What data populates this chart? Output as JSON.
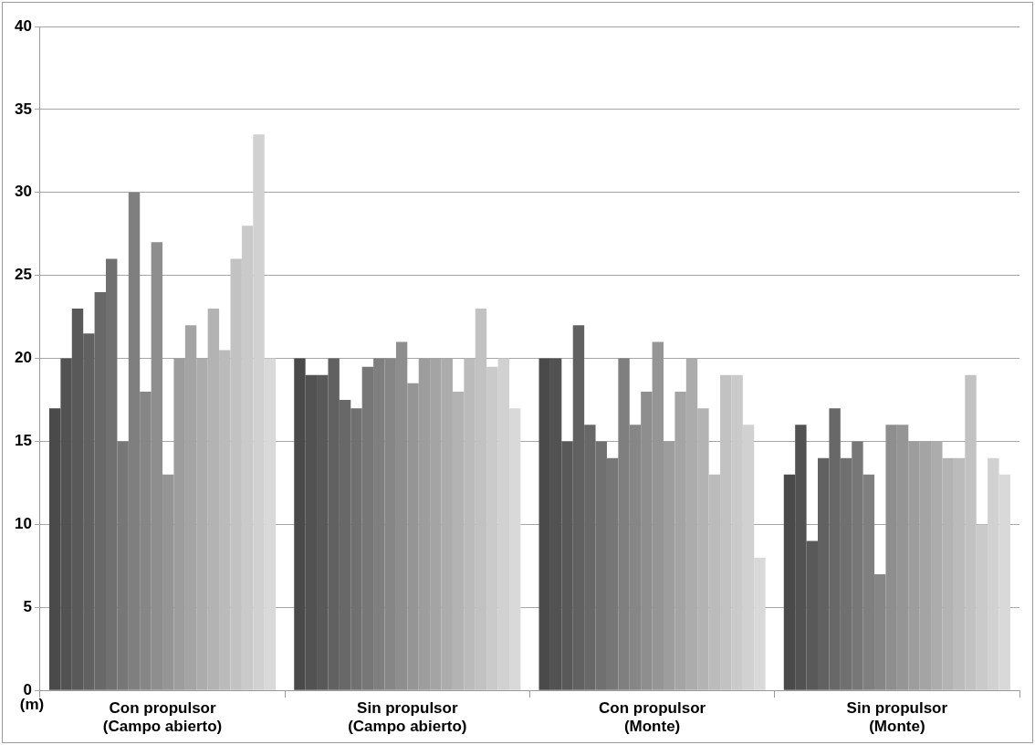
{
  "chart_data": {
    "type": "bar",
    "ylabel": "(m)",
    "categories": [
      "Con propulsor\n(Campo abierto)",
      "Sin propulsor\n(Campo abierto)",
      "Con propulsor\n(Monte)",
      "Sin propulsor\n(Monte)"
    ],
    "series": [
      {
        "color": "#4a4a4a",
        "values": [
          17,
          20,
          20,
          13
        ]
      },
      {
        "color": "#525252",
        "values": [
          20,
          19,
          20,
          16
        ]
      },
      {
        "color": "#595959",
        "values": [
          23,
          19,
          15,
          9
        ]
      },
      {
        "color": "#616161",
        "values": [
          21.5,
          20,
          22,
          14
        ]
      },
      {
        "color": "#686868",
        "values": [
          24,
          17.5,
          16,
          17
        ]
      },
      {
        "color": "#707070",
        "values": [
          26,
          17,
          15,
          14
        ]
      },
      {
        "color": "#777777",
        "values": [
          15,
          19.5,
          14,
          15
        ]
      },
      {
        "color": "#7f7f7f",
        "values": [
          30,
          20,
          20,
          13
        ]
      },
      {
        "color": "#868686",
        "values": [
          18,
          20,
          16,
          7
        ]
      },
      {
        "color": "#8e8e8e",
        "values": [
          27,
          21,
          18,
          16
        ]
      },
      {
        "color": "#959595",
        "values": [
          13,
          18.5,
          21,
          16
        ]
      },
      {
        "color": "#9d9d9d",
        "values": [
          20,
          20,
          15,
          15
        ]
      },
      {
        "color": "#a4a4a4",
        "values": [
          22,
          20,
          18,
          15
        ]
      },
      {
        "color": "#acacac",
        "values": [
          20,
          20,
          20,
          15
        ]
      },
      {
        "color": "#b3b3b3",
        "values": [
          23,
          18,
          17,
          14
        ]
      },
      {
        "color": "#bbbbbb",
        "values": [
          20.5,
          20,
          13,
          14
        ]
      },
      {
        "color": "#c2c2c2",
        "values": [
          26,
          23,
          19,
          19
        ]
      },
      {
        "color": "#cacaca",
        "values": [
          28,
          19.5,
          19,
          10
        ]
      },
      {
        "color": "#d1d1d1",
        "values": [
          33.5,
          20,
          16,
          14
        ]
      },
      {
        "color": "#d9d9d9",
        "values": [
          20,
          17,
          8,
          13
        ]
      }
    ],
    "ylim": [
      0,
      40
    ],
    "yticks": [
      0,
      5,
      10,
      15,
      20,
      25,
      30,
      35,
      40
    ],
    "grid": "y",
    "legend": false
  }
}
